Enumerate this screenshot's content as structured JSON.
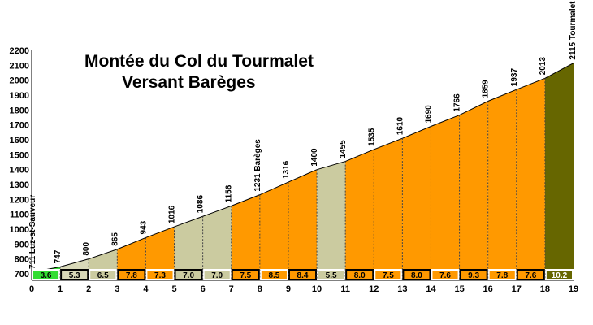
{
  "chart_data": {
    "type": "area",
    "title": "Montée du Col du Tourmalet",
    "subtitle": "Versant Barèges",
    "xlim": [
      0,
      19
    ],
    "ylim": [
      700,
      2200
    ],
    "x_ticks": [
      0,
      1,
      2,
      3,
      4,
      5,
      6,
      7,
      8,
      9,
      10,
      11,
      12,
      13,
      14,
      15,
      16,
      17,
      18,
      19
    ],
    "y_ticks": [
      700,
      800,
      900,
      1000,
      1100,
      1200,
      1300,
      1400,
      1500,
      1600,
      1700,
      1800,
      1900,
      2000,
      2100,
      2200
    ],
    "x": [
      0,
      1,
      2,
      3,
      4,
      5,
      6,
      7,
      8,
      9,
      10,
      11,
      12,
      13,
      14,
      15,
      16,
      17,
      18,
      19
    ],
    "altitudes": [
      711,
      747,
      800,
      865,
      943,
      1016,
      1086,
      1156,
      1231,
      1316,
      1400,
      1455,
      1535,
      1610,
      1690,
      1766,
      1859,
      1937,
      2013,
      2115
    ],
    "altitude_labels": [
      "711 Luz-st-Sauveur",
      "747",
      "800",
      "865",
      "943",
      "1016",
      "1086",
      "1156",
      "1231 Barèges",
      "1316",
      "1400",
      "1455",
      "1535",
      "1610",
      "1690",
      "1766",
      "1859",
      "1937",
      "2013",
      "2115 Tourmalet"
    ],
    "gradients": [
      "3.6",
      "5.3",
      "6.5",
      "7.8",
      "7.3",
      "7.0",
      "7.0",
      "7.5",
      "8.5",
      "8.4",
      "5.5",
      "8.0",
      "7.5",
      "8.0",
      "7.6",
      "9.3",
      "7.8",
      "7.6",
      "10.2"
    ],
    "segment_colors": [
      "#33dd33",
      "#d8d8b8",
      "#cbcba0",
      "#ff9900",
      "#ff9900",
      "#cbcba0",
      "#cbcba0",
      "#ff9900",
      "#ff9900",
      "#ff9900",
      "#cbcba0",
      "#ff9900",
      "#ff9900",
      "#ff9900",
      "#ff9900",
      "#ff9900",
      "#ff9900",
      "#ff9900",
      "#666600"
    ],
    "grid": false
  }
}
